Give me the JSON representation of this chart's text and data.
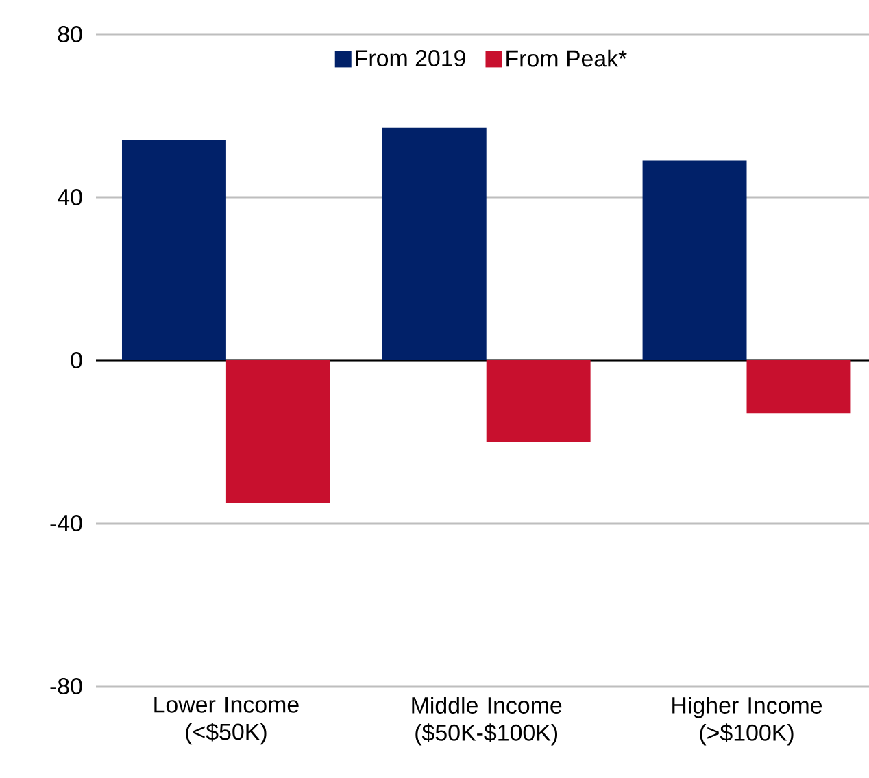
{
  "chart_data": {
    "type": "bar",
    "categories": [
      "Lower Income (<$50K)",
      "Middle Income ($50K-$100K)",
      "Higher Income (>$100K)"
    ],
    "series": [
      {
        "name": "From 2019",
        "color": "#012169",
        "values": [
          54,
          57,
          49
        ]
      },
      {
        "name": "From Peak*",
        "color": "#c8102e",
        "values": [
          -35,
          -20,
          -13
        ]
      }
    ],
    "ylim": [
      -80,
      80
    ],
    "yticks": [
      -80,
      -40,
      0,
      40,
      80
    ],
    "grid": "y",
    "legend": "top"
  }
}
